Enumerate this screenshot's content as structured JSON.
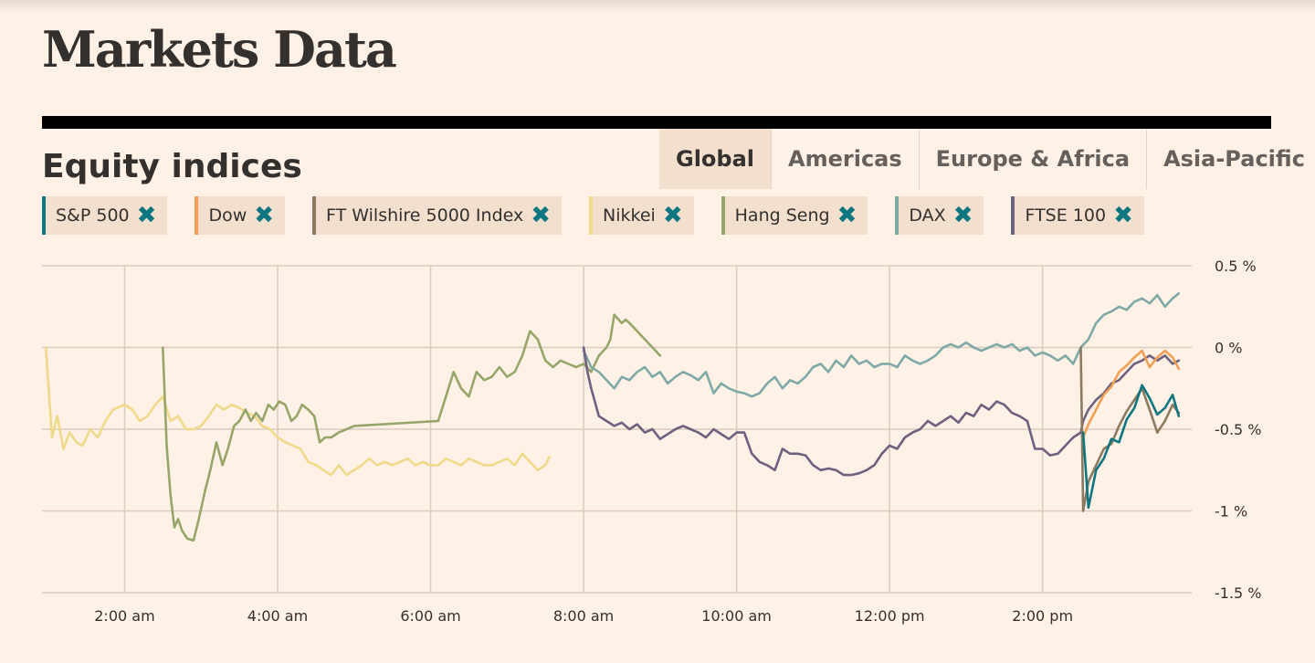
{
  "page": {
    "title": "Markets Data"
  },
  "section": {
    "title": "Equity indices"
  },
  "tabs": [
    {
      "label": "Global",
      "active": true
    },
    {
      "label": "Americas",
      "active": false
    },
    {
      "label": "Europe & Africa",
      "active": false
    },
    {
      "label": "Asia-Pacific",
      "active": false
    }
  ],
  "colors": {
    "background": "#fff1e5",
    "grid": "#d9cbbd",
    "close_icon": "#0d7680"
  },
  "chart_data": {
    "type": "line",
    "title": "Equity indices",
    "xlabel": "",
    "ylabel": "",
    "x_unit": "hours (local time)",
    "xlim": [
      0.92,
      15.95
    ],
    "ylim": [
      -1.5,
      0.5
    ],
    "x_ticks": [
      {
        "value": 2,
        "label": "2:00 am"
      },
      {
        "value": 4,
        "label": "4:00 am"
      },
      {
        "value": 6,
        "label": "6:00 am"
      },
      {
        "value": 8,
        "label": "8:00 am"
      },
      {
        "value": 10,
        "label": "10:00 am"
      },
      {
        "value": 12,
        "label": "12:00 pm"
      },
      {
        "value": 14,
        "label": "2:00 pm"
      }
    ],
    "y_ticks": [
      {
        "value": 0.5,
        "label": "0.5 %"
      },
      {
        "value": 0,
        "label": "0 %"
      },
      {
        "value": -0.5,
        "label": "-0.5 %"
      },
      {
        "value": -1,
        "label": "-1 %"
      },
      {
        "value": -1.5,
        "label": "-1.5 %"
      }
    ],
    "grid": true,
    "legend_position": "top",
    "series": [
      {
        "name": "S&P 500",
        "color": "#0d7680",
        "x": [
          14.53,
          14.6,
          14.7,
          14.8,
          14.9,
          15.0,
          15.1,
          15.2,
          15.3,
          15.4,
          15.5,
          15.6,
          15.7,
          15.78
        ],
        "y": [
          -0.52,
          -0.98,
          -0.75,
          -0.68,
          -0.56,
          -0.58,
          -0.44,
          -0.37,
          -0.23,
          -0.31,
          -0.41,
          -0.37,
          -0.29,
          -0.42
        ]
      },
      {
        "name": "Dow",
        "color": "#f19f54",
        "x": [
          14.53,
          14.6,
          14.7,
          14.8,
          14.9,
          15.0,
          15.1,
          15.2,
          15.3,
          15.4,
          15.5,
          15.6,
          15.7,
          15.78
        ],
        "y": [
          -0.55,
          -0.47,
          -0.38,
          -0.29,
          -0.24,
          -0.15,
          -0.11,
          -0.06,
          -0.02,
          -0.12,
          -0.06,
          -0.02,
          -0.06,
          -0.13
        ]
      },
      {
        "name": "FT Wilshire 5000 Index",
        "color": "#8b7a60",
        "x": [
          14.5,
          14.53,
          14.6,
          14.7,
          14.8,
          14.9,
          15.0,
          15.1,
          15.2,
          15.3,
          15.4,
          15.5,
          15.6,
          15.7,
          15.78
        ],
        "y": [
          0.0,
          -1.0,
          -0.82,
          -0.72,
          -0.62,
          -0.59,
          -0.48,
          -0.39,
          -0.32,
          -0.25,
          -0.38,
          -0.52,
          -0.45,
          -0.35,
          -0.4
        ]
      },
      {
        "name": "Nikkei",
        "color": "#efd98a",
        "x": [
          0.97,
          1.05,
          1.12,
          1.2,
          1.28,
          1.37,
          1.45,
          1.55,
          1.65,
          1.75,
          1.85,
          2.0,
          2.1,
          2.2,
          2.3,
          2.4,
          2.5,
          2.6,
          2.7,
          2.8,
          2.9,
          3.0,
          3.1,
          3.2,
          3.3,
          3.4,
          3.5,
          3.6,
          3.7,
          3.8,
          3.9,
          4.0,
          4.1,
          4.2,
          4.3,
          4.4,
          4.5,
          4.6,
          4.7,
          4.8,
          4.9,
          5.0,
          5.1,
          5.2,
          5.3,
          5.4,
          5.5,
          5.6,
          5.7,
          5.8,
          5.9,
          6.0,
          6.1,
          6.2,
          6.3,
          6.4,
          6.5,
          6.6,
          6.7,
          6.8,
          6.9,
          7.0,
          7.1,
          7.2,
          7.3,
          7.4,
          7.5,
          7.55
        ],
        "y": [
          0.0,
          -0.55,
          -0.42,
          -0.62,
          -0.52,
          -0.58,
          -0.6,
          -0.5,
          -0.55,
          -0.45,
          -0.38,
          -0.35,
          -0.38,
          -0.45,
          -0.42,
          -0.35,
          -0.3,
          -0.45,
          -0.42,
          -0.5,
          -0.5,
          -0.48,
          -0.42,
          -0.35,
          -0.38,
          -0.35,
          -0.37,
          -0.4,
          -0.42,
          -0.48,
          -0.5,
          -0.55,
          -0.58,
          -0.6,
          -0.62,
          -0.7,
          -0.72,
          -0.75,
          -0.78,
          -0.72,
          -0.78,
          -0.75,
          -0.72,
          -0.68,
          -0.72,
          -0.7,
          -0.72,
          -0.7,
          -0.68,
          -0.72,
          -0.7,
          -0.72,
          -0.72,
          -0.68,
          -0.7,
          -0.72,
          -0.68,
          -0.7,
          -0.72,
          -0.72,
          -0.7,
          -0.68,
          -0.72,
          -0.65,
          -0.7,
          -0.75,
          -0.72,
          -0.67
        ]
      },
      {
        "name": "Hang Seng",
        "color": "#96a66a",
        "x": [
          2.5,
          2.55,
          2.6,
          2.65,
          2.7,
          2.75,
          2.82,
          2.9,
          2.97,
          3.05,
          3.12,
          3.2,
          3.28,
          3.35,
          3.43,
          3.5,
          3.58,
          3.65,
          3.72,
          3.8,
          3.88,
          3.95,
          4.02,
          4.1,
          4.18,
          4.25,
          4.32,
          4.4,
          4.48,
          4.55,
          4.62,
          4.7,
          4.8,
          4.9,
          5.0,
          6.1,
          6.2,
          6.3,
          6.4,
          6.5,
          6.6,
          6.7,
          6.8,
          6.9,
          7.0,
          7.1,
          7.2,
          7.3,
          7.4,
          7.5,
          7.55,
          7.6,
          7.7,
          7.8,
          7.9,
          8.0,
          8.1,
          8.2,
          8.3,
          8.35,
          8.4,
          8.5,
          8.55,
          8.6,
          8.7,
          8.8,
          8.9,
          9.0
        ],
        "y": [
          0.0,
          -0.6,
          -0.9,
          -1.1,
          -1.05,
          -1.12,
          -1.17,
          -1.18,
          -1.05,
          -0.88,
          -0.75,
          -0.58,
          -0.72,
          -0.62,
          -0.48,
          -0.45,
          -0.38,
          -0.45,
          -0.4,
          -0.45,
          -0.35,
          -0.38,
          -0.33,
          -0.35,
          -0.45,
          -0.42,
          -0.35,
          -0.38,
          -0.42,
          -0.58,
          -0.55,
          -0.55,
          -0.52,
          -0.5,
          -0.48,
          -0.45,
          -0.3,
          -0.15,
          -0.25,
          -0.3,
          -0.15,
          -0.2,
          -0.18,
          -0.12,
          -0.18,
          -0.15,
          -0.05,
          0.1,
          0.05,
          -0.08,
          -0.1,
          -0.12,
          -0.08,
          -0.1,
          -0.12,
          -0.1,
          -0.15,
          -0.05,
          0.0,
          0.05,
          0.2,
          0.15,
          0.17,
          0.15,
          0.1,
          0.05,
          0.0,
          -0.05
        ]
      },
      {
        "name": "DAX",
        "color": "#7fa9a5",
        "x": [
          8.0,
          8.1,
          8.2,
          8.3,
          8.4,
          8.5,
          8.6,
          8.7,
          8.8,
          8.9,
          9.0,
          9.1,
          9.2,
          9.3,
          9.4,
          9.5,
          9.6,
          9.7,
          9.8,
          9.9,
          10.0,
          10.1,
          10.2,
          10.3,
          10.4,
          10.5,
          10.6,
          10.7,
          10.8,
          10.9,
          11.0,
          11.1,
          11.2,
          11.3,
          11.4,
          11.5,
          11.6,
          11.7,
          11.8,
          11.9,
          12.0,
          12.1,
          12.2,
          12.3,
          12.4,
          12.5,
          12.6,
          12.7,
          12.8,
          12.9,
          13.0,
          13.1,
          13.2,
          13.3,
          13.4,
          13.5,
          13.6,
          13.7,
          13.8,
          13.9,
          14.0,
          14.1,
          14.2,
          14.3,
          14.4,
          14.5,
          14.6,
          14.7,
          14.8,
          14.9,
          15.0,
          15.1,
          15.2,
          15.3,
          15.4,
          15.5,
          15.6,
          15.7,
          15.78
        ],
        "y": [
          -0.02,
          -0.12,
          -0.15,
          -0.2,
          -0.25,
          -0.18,
          -0.2,
          -0.15,
          -0.12,
          -0.18,
          -0.15,
          -0.22,
          -0.18,
          -0.15,
          -0.17,
          -0.2,
          -0.15,
          -0.28,
          -0.22,
          -0.25,
          -0.27,
          -0.28,
          -0.3,
          -0.28,
          -0.22,
          -0.18,
          -0.25,
          -0.2,
          -0.22,
          -0.18,
          -0.12,
          -0.1,
          -0.15,
          -0.08,
          -0.12,
          -0.05,
          -0.1,
          -0.08,
          -0.12,
          -0.1,
          -0.1,
          -0.12,
          -0.05,
          -0.08,
          -0.1,
          -0.08,
          -0.05,
          0.0,
          0.02,
          0.0,
          0.03,
          0.0,
          -0.02,
          0.0,
          0.02,
          0.0,
          0.02,
          -0.02,
          0.0,
          -0.05,
          -0.03,
          -0.05,
          -0.08,
          -0.05,
          -0.1,
          0.0,
          0.05,
          0.15,
          0.2,
          0.22,
          0.25,
          0.23,
          0.28,
          0.3,
          0.27,
          0.32,
          0.25,
          0.3,
          0.33
        ]
      },
      {
        "name": "FTSE 100",
        "color": "#6d6180",
        "x": [
          8.0,
          8.05,
          8.1,
          8.2,
          8.3,
          8.4,
          8.5,
          8.6,
          8.7,
          8.8,
          8.9,
          9.0,
          9.1,
          9.2,
          9.3,
          9.4,
          9.5,
          9.6,
          9.7,
          9.8,
          9.9,
          10.0,
          10.1,
          10.2,
          10.3,
          10.4,
          10.5,
          10.6,
          10.7,
          10.8,
          10.9,
          11.0,
          11.1,
          11.2,
          11.3,
          11.4,
          11.5,
          11.6,
          11.7,
          11.8,
          11.9,
          12.0,
          12.1,
          12.2,
          12.3,
          12.4,
          12.5,
          12.6,
          12.7,
          12.8,
          12.9,
          13.0,
          13.1,
          13.2,
          13.3,
          13.4,
          13.5,
          13.6,
          13.7,
          13.8,
          13.9,
          14.0,
          14.1,
          14.2,
          14.3,
          14.4,
          14.5,
          14.53,
          14.6,
          14.7,
          14.8,
          14.9,
          15.0,
          15.1,
          15.2,
          15.3,
          15.4,
          15.5,
          15.6,
          15.7,
          15.78
        ],
        "y": [
          0.0,
          -0.15,
          -0.25,
          -0.42,
          -0.45,
          -0.48,
          -0.46,
          -0.5,
          -0.47,
          -0.52,
          -0.5,
          -0.56,
          -0.53,
          -0.5,
          -0.48,
          -0.5,
          -0.52,
          -0.55,
          -0.5,
          -0.53,
          -0.56,
          -0.52,
          -0.52,
          -0.65,
          -0.7,
          -0.72,
          -0.75,
          -0.62,
          -0.65,
          -0.65,
          -0.66,
          -0.72,
          -0.75,
          -0.74,
          -0.75,
          -0.78,
          -0.78,
          -0.77,
          -0.75,
          -0.72,
          -0.65,
          -0.6,
          -0.62,
          -0.55,
          -0.52,
          -0.5,
          -0.45,
          -0.48,
          -0.45,
          -0.42,
          -0.46,
          -0.4,
          -0.42,
          -0.35,
          -0.38,
          -0.33,
          -0.35,
          -0.4,
          -0.42,
          -0.45,
          -0.62,
          -0.62,
          -0.66,
          -0.65,
          -0.6,
          -0.55,
          -0.52,
          -0.45,
          -0.38,
          -0.32,
          -0.28,
          -0.22,
          -0.2,
          -0.15,
          -0.1,
          -0.08,
          -0.05,
          -0.08,
          -0.05,
          -0.1,
          -0.08
        ]
      }
    ]
  }
}
